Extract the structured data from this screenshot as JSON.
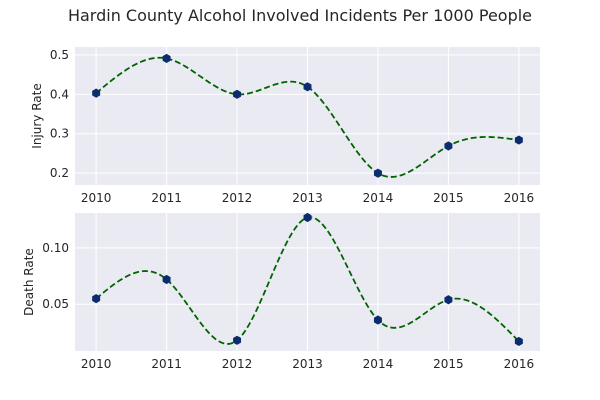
{
  "figure": {
    "title": "Hardin County Alcohol Involved Incidents Per 1000 People"
  },
  "style": {
    "axes_background": "#eaeaf2",
    "grid_color": "#ffffff",
    "line_color": "#006400",
    "marker_color": "#0b2d6e"
  },
  "chart_data": [
    {
      "type": "line",
      "line_style": "dashed, smooth interpolated curve",
      "marker": "hexagon",
      "x": [
        2010,
        2011,
        2012,
        2013,
        2014,
        2015,
        2016
      ],
      "series": [
        {
          "values": [
            0.403,
            0.491,
            0.4,
            0.419,
            0.2,
            0.269,
            0.284
          ]
        }
      ],
      "xlabel": "",
      "ylabel": "Injury Rate",
      "xlim": [
        2009.7,
        2016.3
      ],
      "ylim": [
        0.17,
        0.52
      ],
      "xticks": [
        2010,
        2011,
        2012,
        2013,
        2014,
        2015,
        2016
      ],
      "xticklabels": [
        "2010",
        "2011",
        "2012",
        "2013",
        "2014",
        "2015",
        "2016"
      ],
      "yticks": [
        0.2,
        0.3,
        0.4,
        0.5
      ],
      "yticklabels": [
        "0.2",
        "0.3",
        "0.4",
        "0.5"
      ],
      "grid": true
    },
    {
      "type": "line",
      "line_style": "dashed, smooth interpolated curve",
      "marker": "hexagon",
      "x": [
        2010,
        2011,
        2012,
        2013,
        2014,
        2015,
        2016
      ],
      "series": [
        {
          "values": [
            0.055,
            0.072,
            0.018,
            0.127,
            0.036,
            0.054,
            0.017
          ]
        }
      ],
      "xlabel": "",
      "ylabel": "Death Rate",
      "xlim": [
        2009.7,
        2016.3
      ],
      "ylim": [
        0.0085,
        0.131
      ],
      "xticks": [
        2010,
        2011,
        2012,
        2013,
        2014,
        2015,
        2016
      ],
      "xticklabels": [
        "2010",
        "2011",
        "2012",
        "2013",
        "2014",
        "2015",
        "2016"
      ],
      "yticks": [
        0.05,
        0.1
      ],
      "yticklabels": [
        "0.05",
        "0.10"
      ],
      "grid": true
    }
  ]
}
